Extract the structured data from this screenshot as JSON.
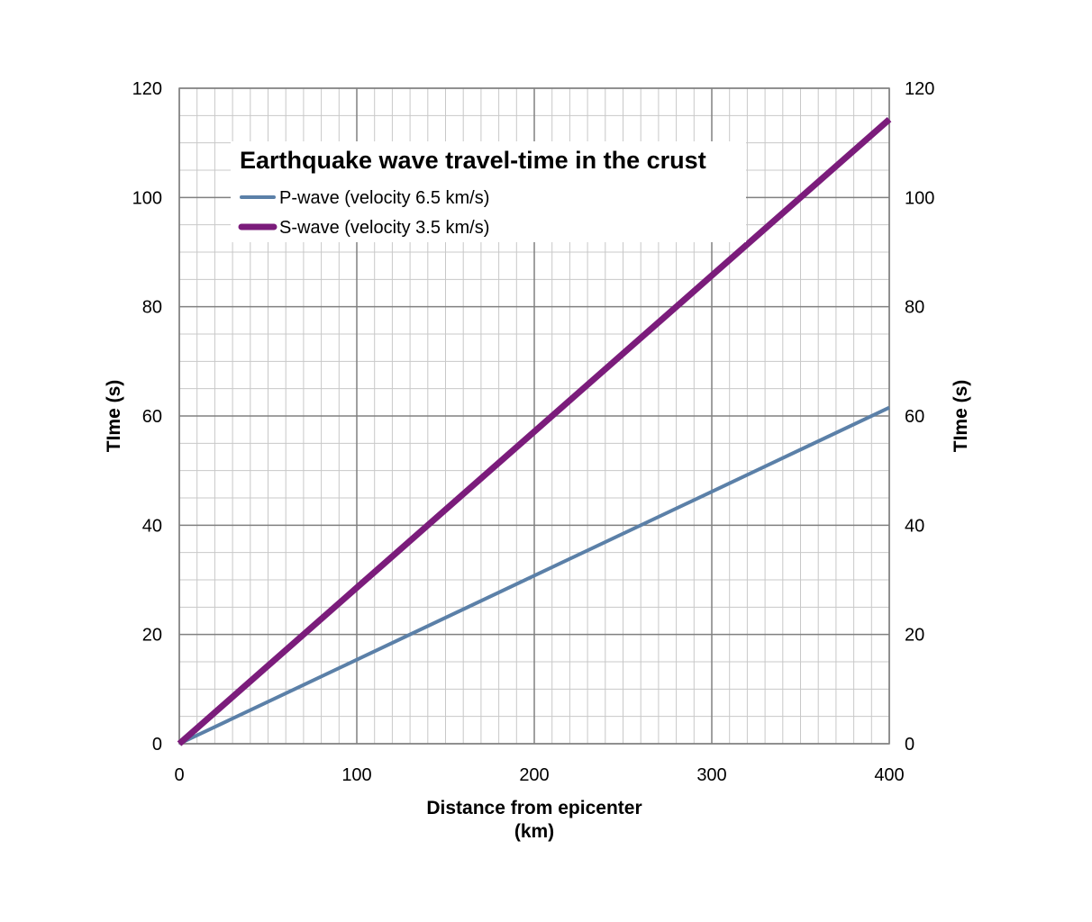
{
  "chart_data": {
    "type": "line",
    "title": "Earthquake wave travel-time in the crust",
    "xlabel_line1": "Distance from epicenter",
    "xlabel_line2": "(km)",
    "ylabel": "TIme (s)",
    "ylabel_right": "TIme (s)",
    "xlim": [
      0,
      400
    ],
    "ylim": [
      0,
      120
    ],
    "x_ticks": [
      0,
      100,
      200,
      300,
      400
    ],
    "y_ticks": [
      0,
      20,
      40,
      60,
      80,
      100,
      120
    ],
    "minor_x_step": 10,
    "minor_y_step": 5,
    "grid": true,
    "legend_position": "top-left",
    "series": [
      {
        "name": "P-wave (velocity 6.5 km/s)",
        "color": "#5b80a8",
        "x": [
          0,
          100,
          200,
          300,
          400
        ],
        "y": [
          0,
          15.38,
          30.77,
          46.15,
          61.54
        ]
      },
      {
        "name": "S-wave (velocity 3.5 km/s)",
        "color": "#7b1c7b",
        "x": [
          0,
          100,
          200,
          300,
          400
        ],
        "y": [
          0,
          28.57,
          57.14,
          85.71,
          114.29
        ]
      }
    ]
  }
}
